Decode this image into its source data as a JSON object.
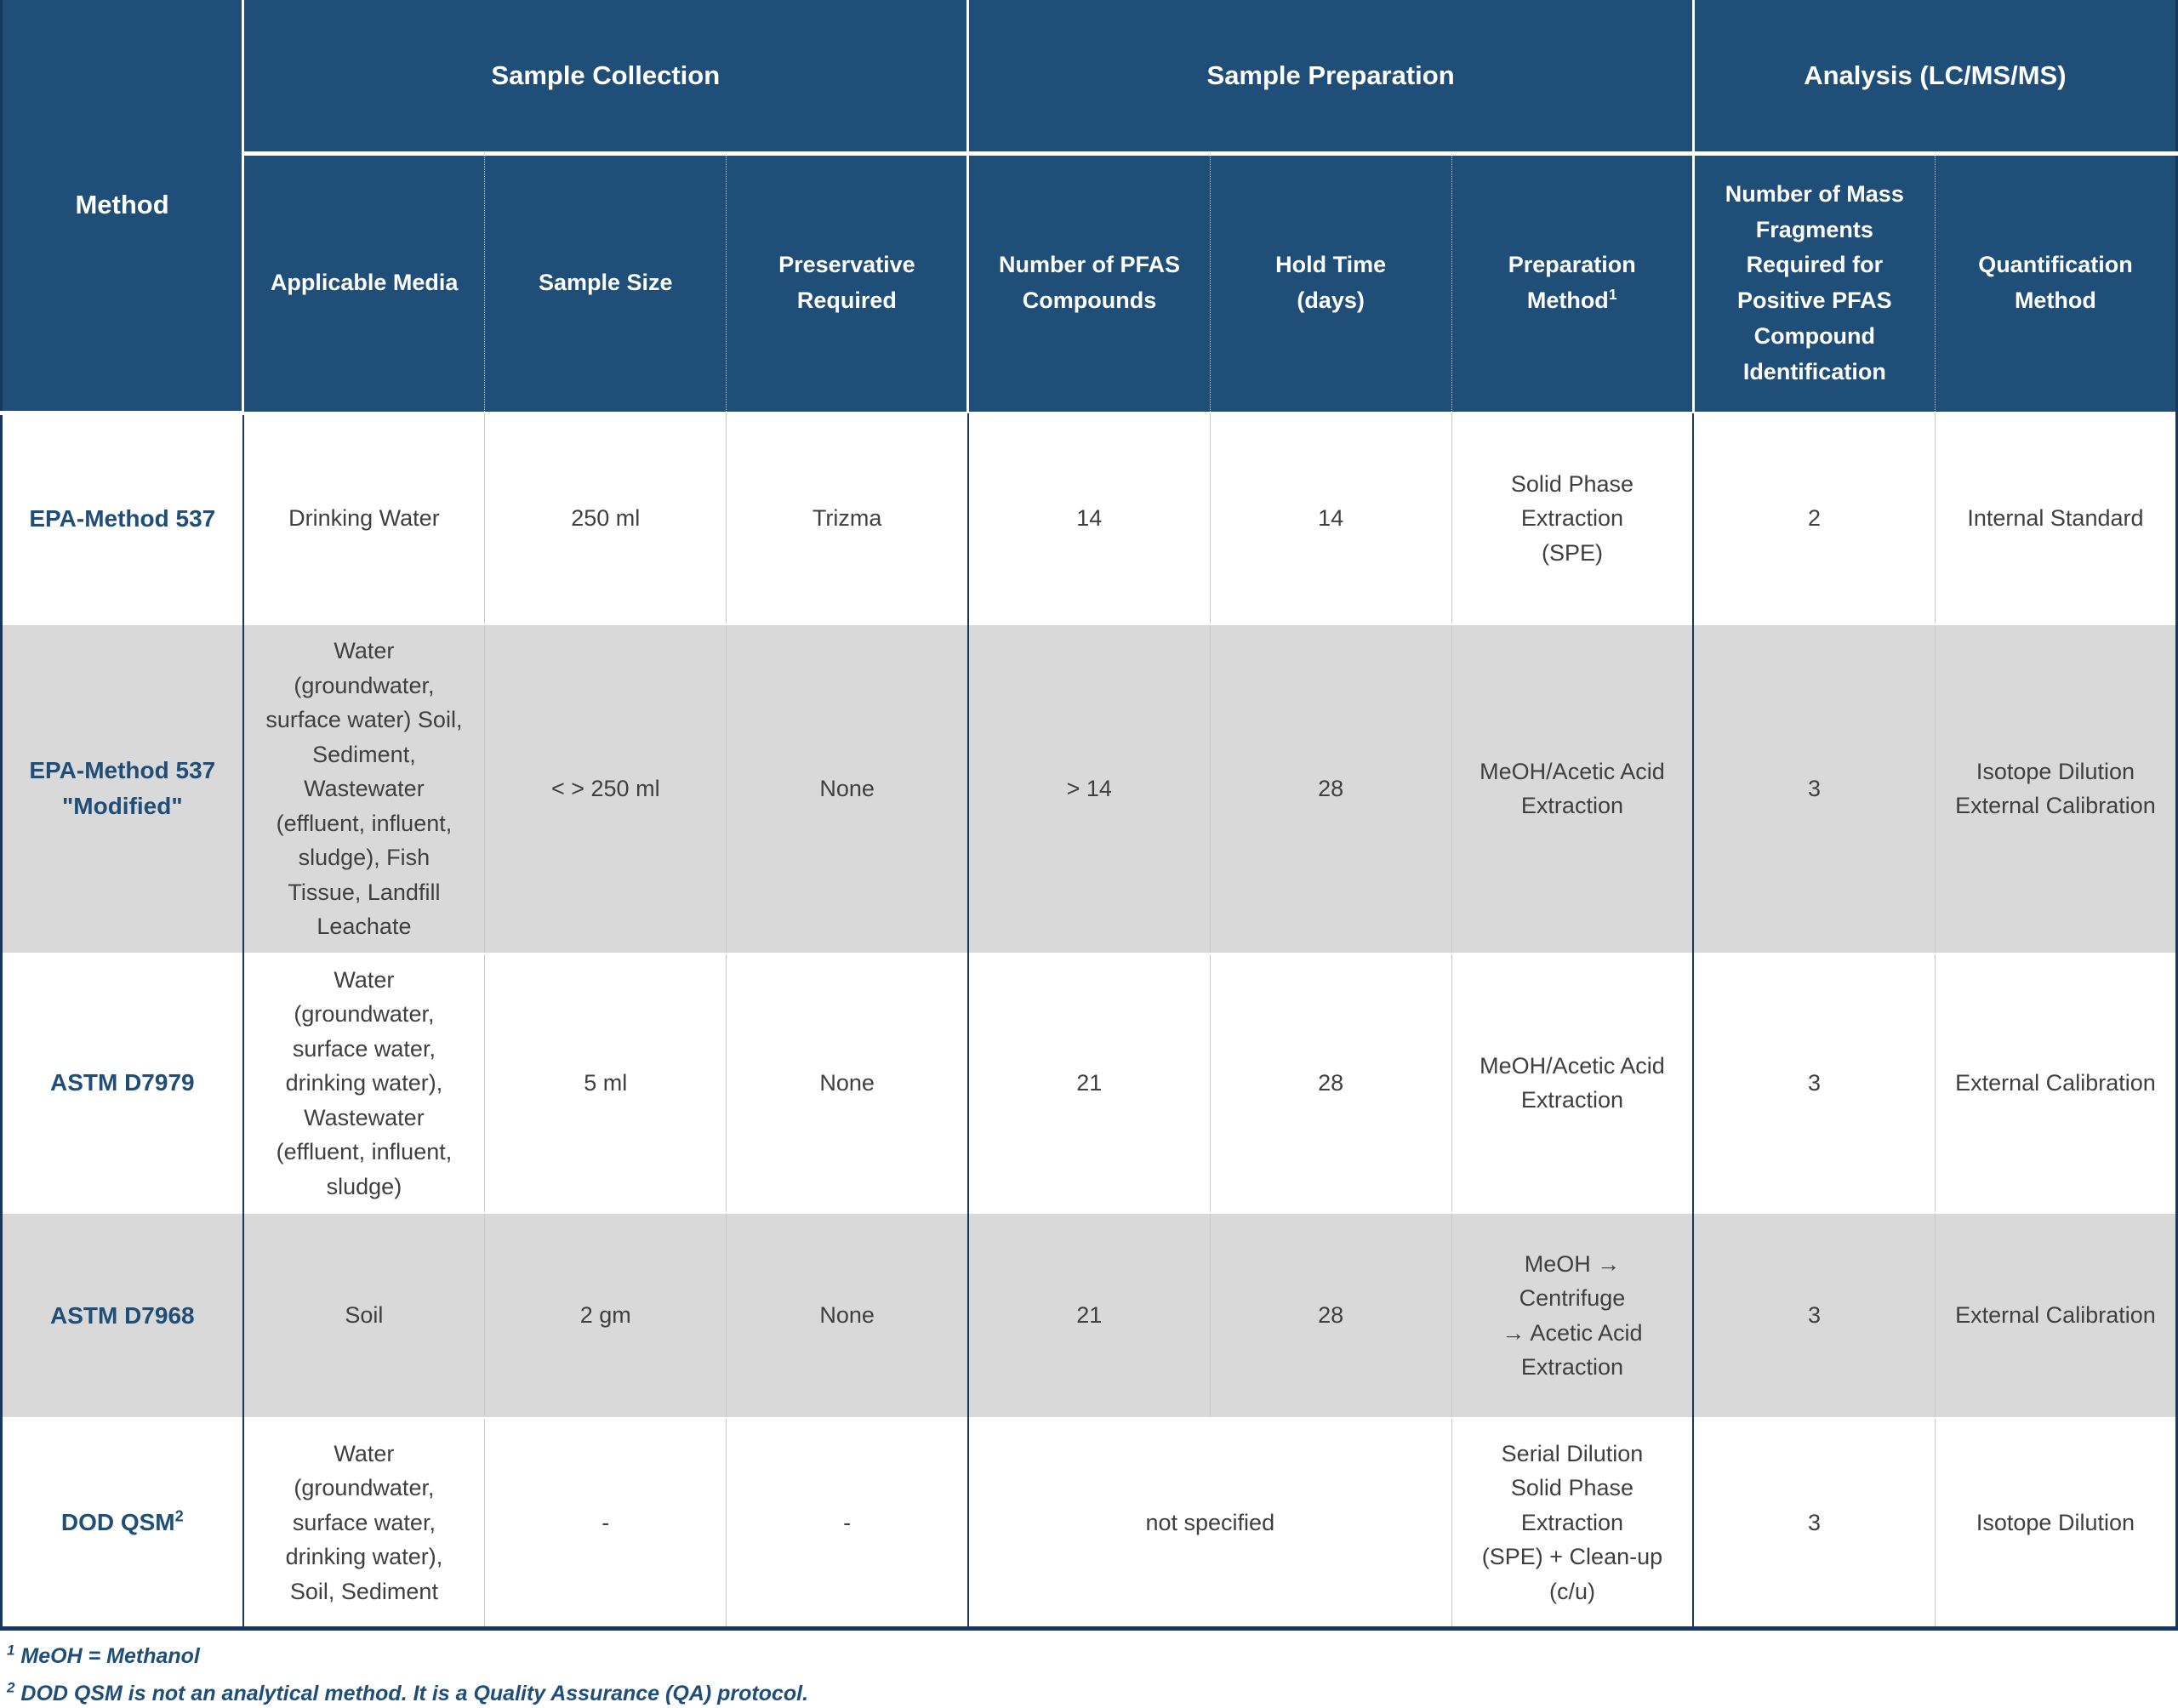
{
  "colors": {
    "header_bg": "#1F4E79",
    "header_text": "#FFFFFF",
    "border_navy": "#17375E",
    "row_bg": "#FFFFFF",
    "row_alt_bg": "#D9D9D9",
    "method_text": "#1F4E79",
    "body_text": "#3F3F3F",
    "footnote_text": "#1F4E79",
    "divider_light": "#C9C9C9"
  },
  "table": {
    "corner_header": "Method",
    "groups": [
      {
        "label": "Sample Collection"
      },
      {
        "label": "Sample Preparation"
      },
      {
        "label": "Analysis (LC/MS/MS)"
      }
    ],
    "columns": {
      "applicable_media": "Applicable Media",
      "sample_size": "Sample Size",
      "preservative": "Preservative Required",
      "pfas_compounds": "Number of PFAS\nCompounds",
      "hold_time": "Hold Time\n(days)",
      "prep_method": "Preparation Method",
      "prep_method_sup": "1",
      "mass_fragments": "Number of Mass Fragments Required for Positive PFAS Compound Identification",
      "quantification": "Quantification Method"
    },
    "rows": [
      {
        "method": "EPA-Method 537",
        "media": "Drinking Water",
        "sample_size": "250 ml",
        "preservative": "Trizma",
        "pfas_compounds": "14",
        "hold_time": "14",
        "prep_method": "Solid Phase Extraction\n(SPE)",
        "mass_fragments": "2",
        "quantification": "Internal Standard"
      },
      {
        "method": "EPA-Method 537\n\"Modified\"",
        "media": "Water (groundwater, surface water) Soil, Sediment, Wastewater (effluent, influent, sludge), Fish Tissue, Landfill Leachate",
        "sample_size": "< > 250 ml",
        "preservative": "None",
        "pfas_compounds": "> 14",
        "hold_time": "28",
        "prep_method": "MeOH/Acetic Acid\nExtraction",
        "mass_fragments": "3",
        "quantification": "Isotope Dilution\nExternal Calibration"
      },
      {
        "method": "ASTM D7979",
        "media": "Water (groundwater, surface water, drinking water), Wastewater (effluent, influent, sludge)",
        "sample_size": "5 ml",
        "preservative": "None",
        "pfas_compounds": "21",
        "hold_time": "28",
        "prep_method": "MeOH/Acetic Acid\nExtraction",
        "mass_fragments": "3",
        "quantification": "External Calibration"
      },
      {
        "method": "ASTM D7968",
        "media": "Soil",
        "sample_size": "2 gm",
        "preservative": "None",
        "pfas_compounds": "21",
        "hold_time": "28",
        "prep_method": "MeOH → Centrifuge\n→ Acetic Acid Extraction",
        "mass_fragments": "3",
        "quantification": "External Calibration"
      },
      {
        "method": "DOD QSM",
        "method_sup": "2",
        "media": "Water (groundwater, surface water, drinking water), Soil, Sediment",
        "sample_size": "-",
        "preservative": "-",
        "not_specified": "not specified",
        "prep_method": "Serial Dilution\nSolid Phase Extraction\n(SPE) + Clean-up (c/u)",
        "mass_fragments": "3",
        "quantification": "Isotope Dilution"
      }
    ]
  },
  "footnotes": [
    {
      "marker": "1",
      "text": " MeOH = Methanol"
    },
    {
      "marker": "2",
      "text": " DOD QSM is not an analytical method. It is a Quality Assurance (QA) protocol."
    }
  ]
}
